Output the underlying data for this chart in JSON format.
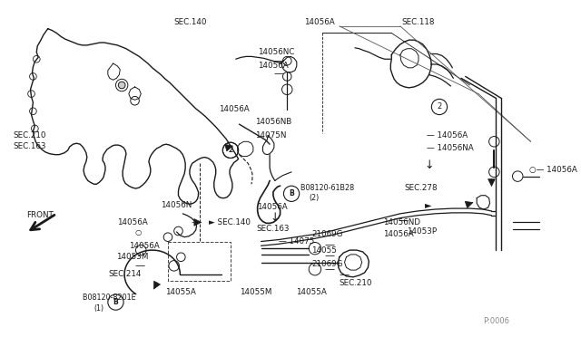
{
  "bg_color": "#ffffff",
  "line_color": "#1a1a1a",
  "page_code": "P:0006",
  "fig_w": 6.4,
  "fig_h": 3.72,
  "dpi": 100,
  "xlim": [
    0,
    640
  ],
  "ylim": [
    0,
    372
  ]
}
